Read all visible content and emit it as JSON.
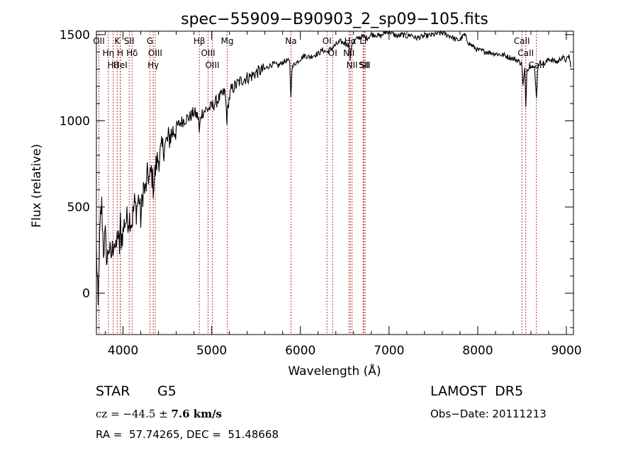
{
  "chart_data": {
    "type": "line",
    "title": "spec−55909−B90903_2_sp09−105.fits",
    "xlabel": "Wavelength (Å)",
    "ylabel": "Flux (relative)",
    "xlim": [
      3700,
      9080
    ],
    "ylim": [
      -240,
      1520
    ],
    "x_ticks": [
      4000,
      5000,
      6000,
      7000,
      8000,
      9000
    ],
    "y_ticks": [
      0,
      500,
      1000,
      1500
    ],
    "grid": false,
    "series": [
      {
        "color": "#000000",
        "x": [
          3700,
          3710,
          3720,
          3730,
          3740,
          3750,
          3760,
          3780,
          3800,
          3820,
          3840,
          3860,
          3880,
          3900,
          3920,
          3940,
          3950,
          3960,
          3970,
          3980,
          4000,
          4020,
          4050,
          4080,
          4100,
          4130,
          4150,
          4180,
          4200,
          4230,
          4250,
          4280,
          4300,
          4320,
          4340,
          4360,
          4380,
          4400,
          4430,
          4460,
          4500,
          4550,
          4600,
          4650,
          4700,
          4750,
          4800,
          4850,
          4860,
          4880,
          4920,
          4960,
          5000,
          5050,
          5100,
          5150,
          5172,
          5190,
          5220,
          5260,
          5300,
          5350,
          5400,
          5450,
          5500,
          5550,
          5600,
          5650,
          5700,
          5750,
          5800,
          5850,
          5880,
          5893,
          5905,
          5930,
          5960,
          6000,
          6050,
          6100,
          6150,
          6200,
          6250,
          6300,
          6350,
          6400,
          6450,
          6500,
          6550,
          6563,
          6580,
          6600,
          6650,
          6700,
          6750,
          6800,
          6850,
          6900,
          6950,
          7000,
          7050,
          7100,
          7150,
          7200,
          7250,
          7300,
          7400,
          7500,
          7600,
          7700,
          7750,
          7800,
          7850,
          7900,
          8000,
          8100,
          8200,
          8300,
          8400,
          8450,
          8498,
          8510,
          8530,
          8542,
          8555,
          8580,
          8610,
          8640,
          8662,
          8680,
          8720,
          8760,
          8800,
          8850,
          8900,
          8950,
          9000,
          9030,
          9050
        ],
        "y": [
          250,
          80,
          -100,
          210,
          360,
          460,
          510,
          250,
          330,
          180,
          280,
          200,
          250,
          320,
          230,
          360,
          300,
          260,
          410,
          320,
          350,
          420,
          430,
          440,
          410,
          520,
          480,
          560,
          430,
          620,
          580,
          700,
          650,
          710,
          620,
          690,
          760,
          780,
          820,
          850,
          880,
          930,
          960,
          990,
          1010,
          1020,
          1050,
          1020,
          930,
          1040,
          1060,
          1070,
          1080,
          1110,
          1140,
          1170,
          1010,
          1110,
          1180,
          1200,
          1220,
          1240,
          1250,
          1260,
          1280,
          1290,
          1300,
          1320,
          1330,
          1320,
          1340,
          1350,
          1340,
          1130,
          1300,
          1330,
          1340,
          1360,
          1380,
          1370,
          1380,
          1390,
          1410,
          1400,
          1420,
          1440,
          1460,
          1450,
          1440,
          1360,
          1450,
          1460,
          1480,
          1490,
          1480,
          1500,
          1500,
          1490,
          1510,
          1520,
          1500,
          1490,
          1500,
          1490,
          1500,
          1480,
          1490,
          1500,
          1510,
          1490,
          1470,
          1470,
          1500,
          1450,
          1410,
          1400,
          1390,
          1380,
          1360,
          1350,
          1330,
          1200,
          1300,
          1080,
          1300,
          1310,
          1330,
          1300,
          1140,
          1330,
          1340,
          1330,
          1360,
          1350,
          1340,
          1370,
          1350,
          1380,
          1310
        ]
      }
    ],
    "lines": [
      {
        "label": "OII",
        "x": 3728
      },
      {
        "label": "Hη",
        "x": 3835
      },
      {
        "label": "Hθ",
        "x": 3889
      },
      {
        "label": "K",
        "x": 3934
      },
      {
        "label": "H",
        "x": 3969
      },
      {
        "label": "HeI",
        "x": 3970
      },
      {
        "label": "SII",
        "x": 4070
      },
      {
        "label": "Hδ",
        "x": 4102
      },
      {
        "label": "G",
        "x": 4304
      },
      {
        "label": "OIII",
        "x": 4363
      },
      {
        "label": "Hγ",
        "x": 4341
      },
      {
        "label": "Hβ",
        "x": 4861
      },
      {
        "label": "OIII",
        "x": 4959
      },
      {
        "label": "OIII",
        "x": 5007
      },
      {
        "label": "Mg",
        "x": 5175
      },
      {
        "label": "Na",
        "x": 5894
      },
      {
        "label": "OI",
        "x": 6300
      },
      {
        "label": "OI",
        "x": 6364
      },
      {
        "label": "Hα",
        "x": 6563
      },
      {
        "label": "NII",
        "x": 6548
      },
      {
        "label": "NII",
        "x": 6583
      },
      {
        "label": "Li",
        "x": 6708
      },
      {
        "label": "SII",
        "x": 6716
      },
      {
        "label": "SII",
        "x": 6731
      },
      {
        "label": "CaII",
        "x": 8498
      },
      {
        "label": "CaII",
        "x": 8542
      },
      {
        "label": "CaII",
        "x": 8662
      }
    ]
  },
  "info": {
    "class": "STAR",
    "subclass": "G5",
    "survey": "LAMOST  DR5",
    "cz_prefix": "cz = −44.5 ± ",
    "cz_err": "7.6 km/s",
    "obs_date": "Obs−Date: 20111213",
    "radec": "RA =  57.74265, DEC =  51.48668"
  }
}
